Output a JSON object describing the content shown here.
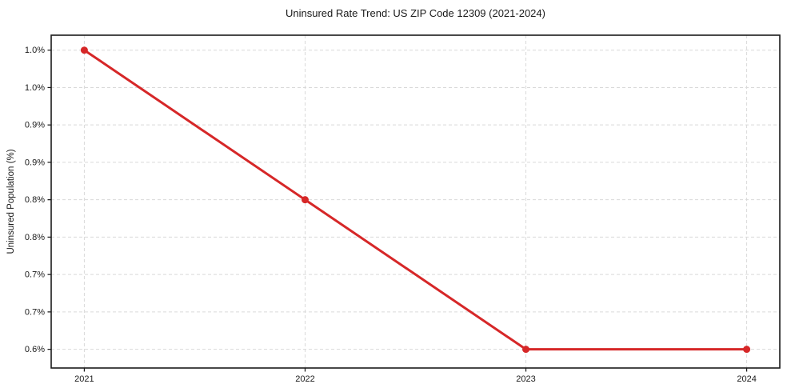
{
  "chart_data": {
    "type": "line",
    "title": "Uninsured Rate Trend: US ZIP Code 12309 (2021-2024)",
    "xlabel": "",
    "ylabel": "Uninsured Population (%)",
    "categories": [
      "2021",
      "2022",
      "2023",
      "2024"
    ],
    "x": [
      2021,
      2022,
      2023,
      2024
    ],
    "series": [
      {
        "name": "Uninsured rate",
        "values": [
          1.0,
          0.8,
          0.6,
          0.6
        ],
        "color": "#d62728",
        "marker": "circle",
        "line_width": 3,
        "marker_radius": 4.5
      }
    ],
    "xlim": [
      2020.85,
      2024.15
    ],
    "ylim": [
      0.575,
      1.02
    ],
    "yticks": {
      "values": [
        1.0,
        0.95,
        0.9,
        0.85,
        0.8,
        0.75,
        0.7,
        0.65,
        0.6
      ],
      "labels": [
        "1.0%",
        "1.0%",
        "0.9%",
        "0.9%",
        "0.8%",
        "0.8%",
        "0.7%",
        "0.7%",
        "0.6%"
      ]
    },
    "grid": true,
    "grid_style": "dashed",
    "legend": "none",
    "colors": {
      "line": "#d62728",
      "grid": "#d9d9d9",
      "spine": "#1a1a1a",
      "text": "#1a1a1a",
      "background": "#ffffff"
    }
  }
}
